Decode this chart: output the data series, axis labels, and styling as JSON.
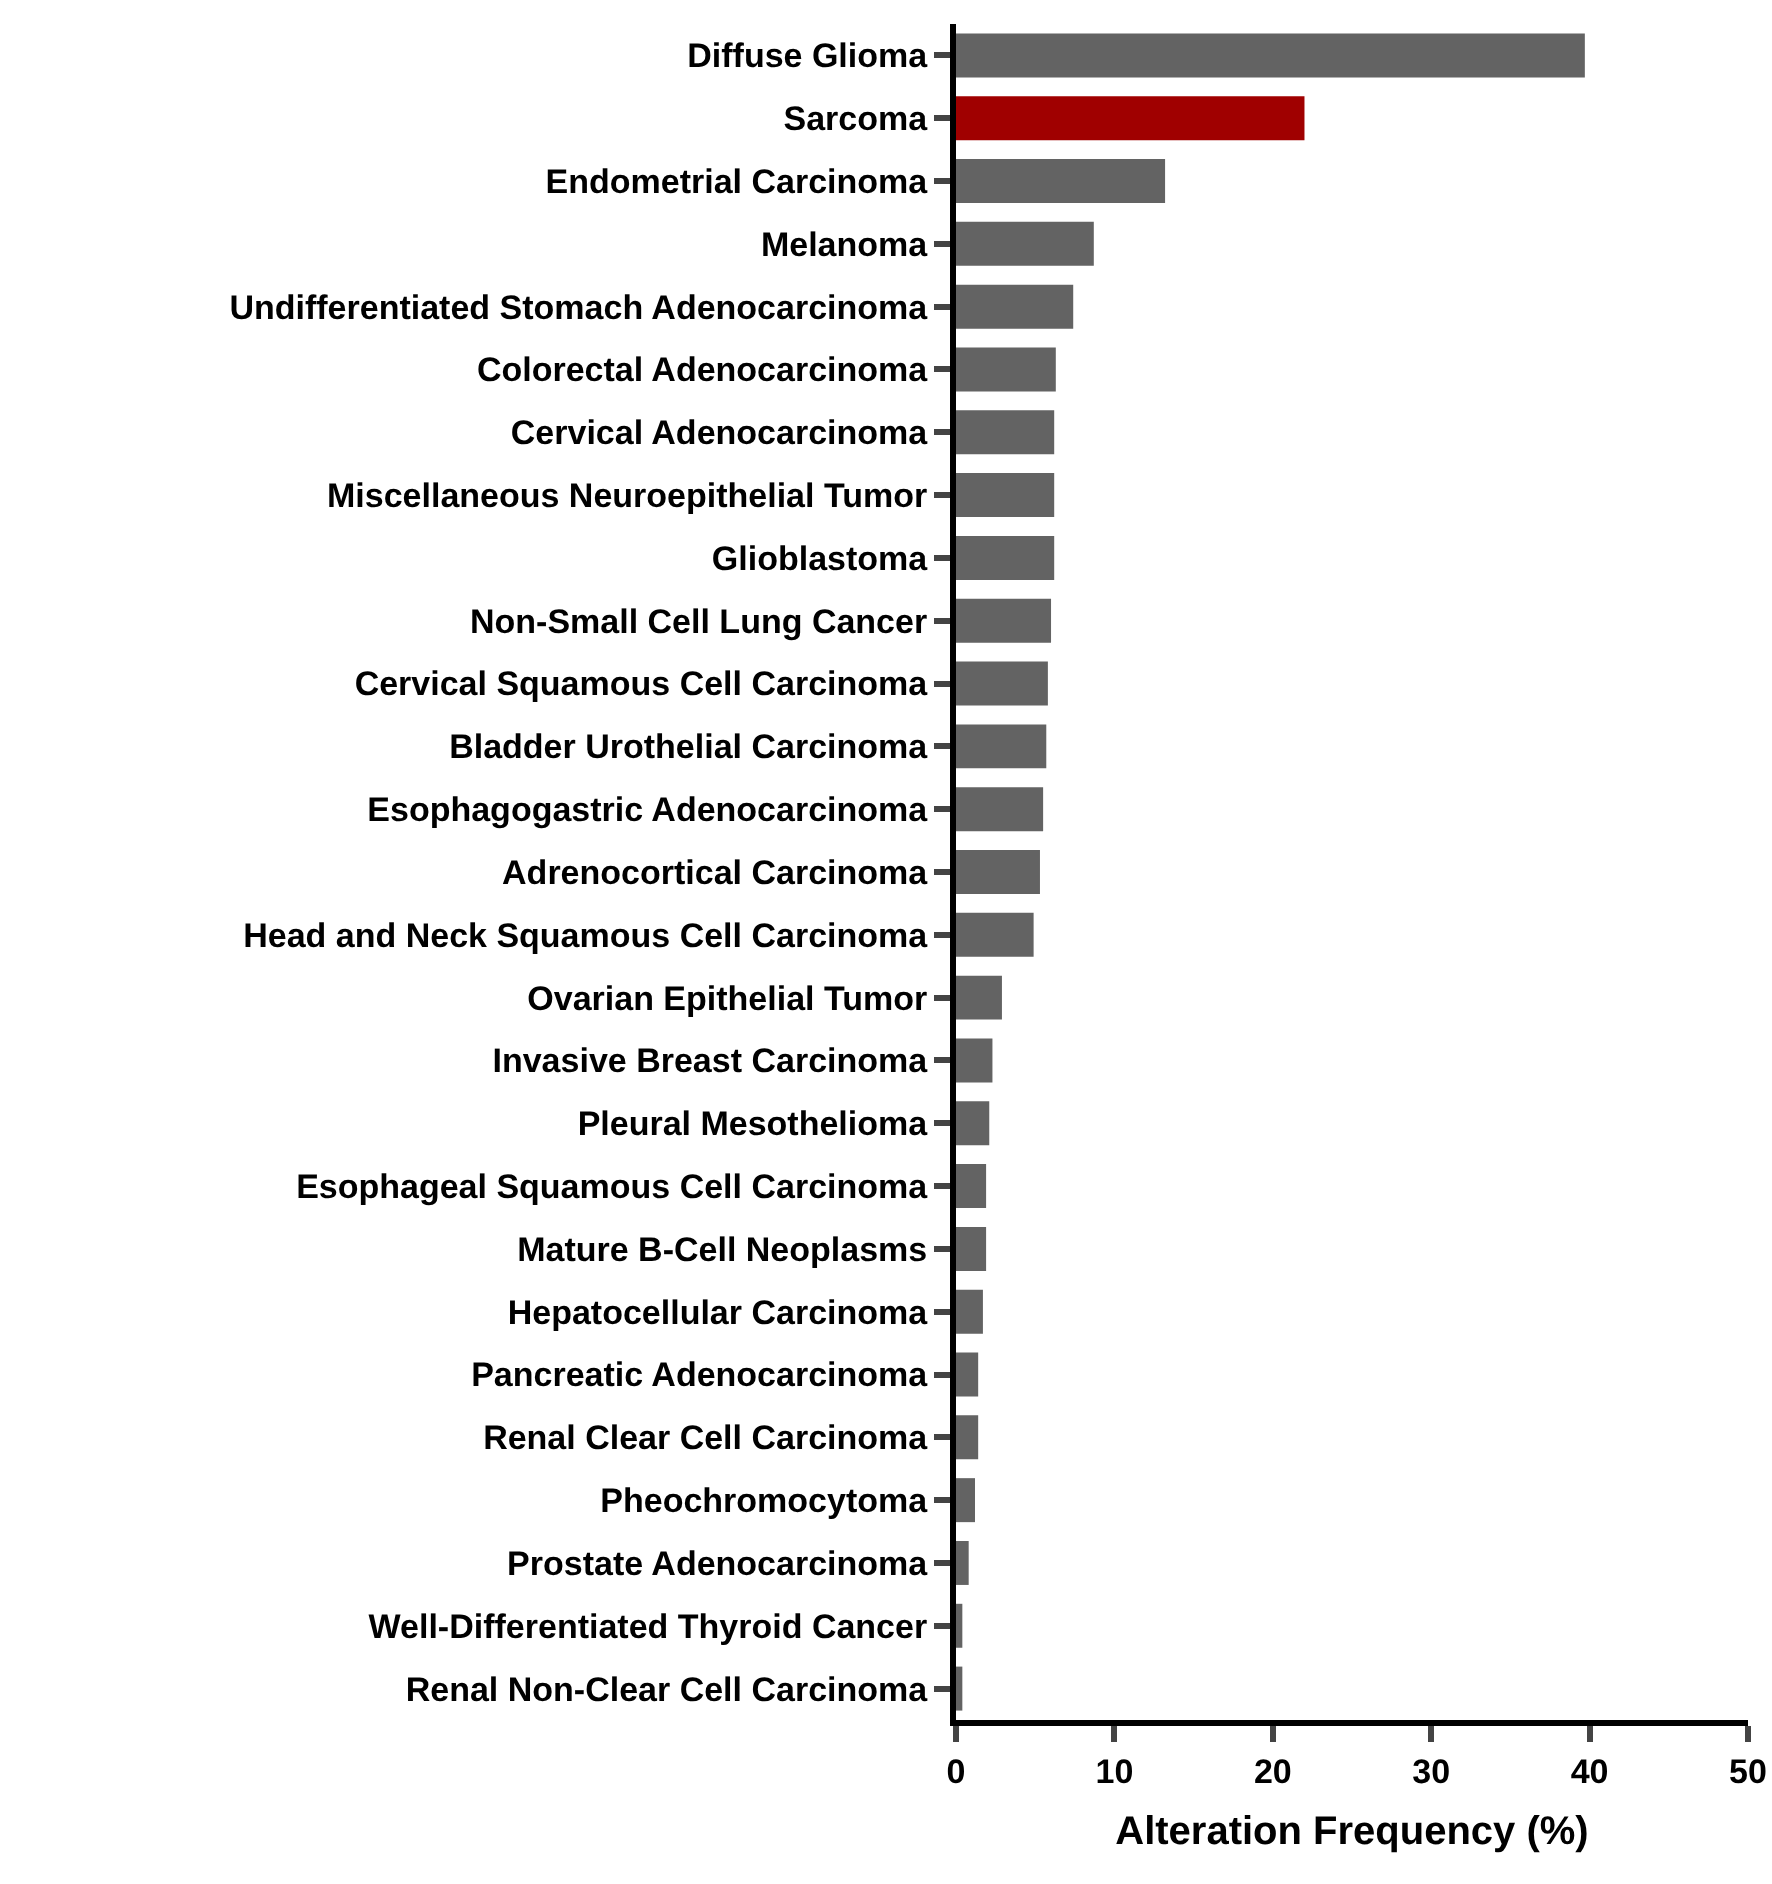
{
  "chart_data": {
    "type": "bar",
    "orientation": "horizontal",
    "xlabel": "Alteration Frequency (%)",
    "categories": [
      "Diffuse Glioma",
      "Sarcoma",
      "Endometrial Carcinoma",
      "Melanoma",
      "Undifferentiated Stomach Adenocarcinoma",
      "Colorectal Adenocarcinoma",
      "Cervical Adenocarcinoma",
      "Miscellaneous Neuroepithelial Tumor",
      "Glioblastoma",
      "Non-Small Cell Lung Cancer",
      "Cervical Squamous Cell Carcinoma",
      "Bladder Urothelial Carcinoma",
      "Esophagogastric Adenocarcinoma",
      "Adrenocortical Carcinoma",
      "Head and Neck Squamous Cell Carcinoma",
      "Ovarian Epithelial Tumor",
      "Invasive Breast Carcinoma",
      "Pleural Mesothelioma",
      "Esophageal Squamous Cell Carcinoma",
      "Mature B-Cell Neoplasms",
      "Hepatocellular Carcinoma",
      "Pancreatic Adenocarcinoma",
      "Renal Clear Cell Carcinoma",
      "Pheochromocytoma",
      "Prostate Adenocarcinoma",
      "Well-Differentiated Thyroid Cancer",
      "Renal Non-Clear Cell Carcinoma"
    ],
    "values": [
      39.7,
      22.0,
      13.2,
      8.7,
      7.4,
      6.3,
      6.2,
      6.2,
      6.2,
      6.0,
      5.8,
      5.7,
      5.5,
      5.3,
      4.9,
      2.9,
      2.3,
      2.1,
      1.9,
      1.9,
      1.7,
      1.4,
      1.4,
      1.2,
      0.8,
      0.4,
      0.4
    ],
    "colors": [
      "#636363",
      "#a00000",
      "#636363",
      "#636363",
      "#636363",
      "#636363",
      "#636363",
      "#636363",
      "#636363",
      "#636363",
      "#636363",
      "#636363",
      "#636363",
      "#636363",
      "#636363",
      "#636363",
      "#636363",
      "#636363",
      "#636363",
      "#636363",
      "#636363",
      "#636363",
      "#636363",
      "#636363",
      "#636363",
      "#636363",
      "#636363"
    ],
    "xlim": [
      0,
      50
    ],
    "xticks": [
      0,
      10,
      20,
      30,
      40,
      50
    ]
  }
}
